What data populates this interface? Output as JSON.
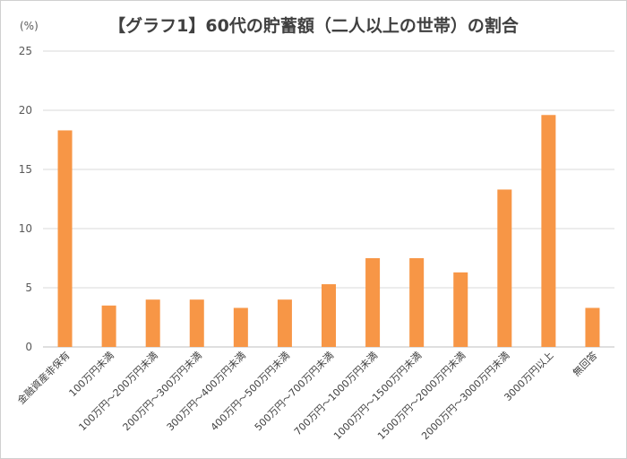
{
  "title": "【グラフ1】60代の貯蓄額（二人以上の世帯）の割合",
  "y_unit": "(%)",
  "colors": {
    "bar": "#F79646",
    "grid": "#d9d9d9",
    "axis": "#bfbfbf"
  },
  "chart_data": {
    "type": "bar",
    "title": "【グラフ1】60代の貯蓄額（二人以上の世帯）の割合",
    "ylabel": "(%)",
    "ylim": [
      0,
      25
    ],
    "yticks": [
      0,
      5,
      10,
      15,
      20,
      25
    ],
    "grid": true,
    "categories": [
      "金融資産非保有",
      "100万円未満",
      "100万円～200万円未満",
      "200万円～300万円未満",
      "300万円～400万円未満",
      "400万円～500万円未満",
      "500万円～700万円未満",
      "700万円～1000万円未満",
      "1000万円～1500万円未満",
      "1500万円～2000万円未満",
      "2000万円～3000万円未満",
      "3000万円以上",
      "無回答"
    ],
    "values": [
      18.3,
      3.5,
      4.0,
      4.0,
      3.3,
      4.0,
      5.3,
      7.5,
      7.5,
      6.3,
      13.3,
      19.6,
      3.3
    ]
  }
}
